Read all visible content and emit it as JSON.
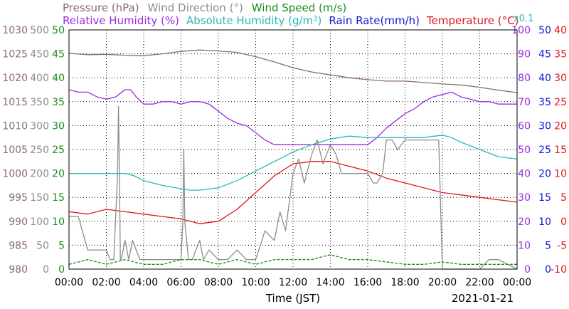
{
  "chart_data": {
    "type": "line",
    "header_row1": [
      {
        "text": "Pressure (hPa)",
        "color": "#8b6b6b"
      },
      {
        "text": "Wind Direction (°)",
        "color": "#8c8c8c"
      },
      {
        "text": "Wind Speed (m/s)",
        "color": "#1a8c1a"
      }
    ],
    "header_row2": [
      {
        "text": "Relative Humidity (%)",
        "color": "#9a2be0"
      },
      {
        "text": "Absolute Humidity (g/m",
        "sup": "3",
        "tail": ")",
        "color": "#2ab8b8"
      },
      {
        "text": "Rain Rate(mm/h)",
        "color": "#1414d2"
      },
      {
        "text": "Temperature (°C)",
        "color": "#e0141e"
      }
    ],
    "multiplier_note": "x0.1",
    "xlabel": "Time (JST)",
    "date": "2021-01-21",
    "x_ticks": [
      "00:00",
      "02:00",
      "04:00",
      "06:00",
      "08:00",
      "10:00",
      "12:00",
      "14:00",
      "16:00",
      "18:00",
      "20:00",
      "22:00",
      "00:00"
    ],
    "xlim": [
      0,
      24
    ],
    "left_axes": [
      {
        "name": "pressure",
        "color": "#8b6b6b",
        "ticks": [
          "980",
          "985",
          "990",
          "995",
          "1000",
          "1005",
          "1010",
          "1015",
          "1020",
          "1025",
          "1030"
        ],
        "ylim": [
          980,
          1030
        ]
      },
      {
        "name": "wind_direction",
        "color": "#8c8c8c",
        "ticks": [
          "0",
          "50",
          "100",
          "150",
          "200",
          "250",
          "300",
          "350",
          "400",
          "450",
          "500"
        ],
        "ylim": [
          0,
          500
        ]
      },
      {
        "name": "wind_speed",
        "color": "#1a8c1a",
        "ticks": [
          "0",
          "5",
          "10",
          "15",
          "20",
          "25",
          "30",
          "35",
          "40",
          "45",
          "50"
        ],
        "ylim": [
          0,
          50
        ]
      }
    ],
    "right_axes": [
      {
        "name": "relative_humidity",
        "color": "#9a2be0",
        "ticks": [
          "0",
          "10",
          "20",
          "30",
          "40",
          "50",
          "60",
          "70",
          "80",
          "90",
          "100"
        ],
        "ylim": [
          0,
          100
        ]
      },
      {
        "name": "rain_rate",
        "color": "#1414d2",
        "ticks": [
          "0",
          "5",
          "10",
          "15",
          "20",
          "25",
          "30",
          "35",
          "40",
          "45",
          "50"
        ],
        "ylim": [
          0,
          50
        ]
      },
      {
        "name": "temperature",
        "color": "#e0141e",
        "ticks": [
          "-10",
          "-5",
          "0",
          "5",
          "10",
          "15",
          "20",
          "25",
          "30",
          "35",
          "40"
        ],
        "ylim": [
          -10,
          40
        ]
      }
    ],
    "grid": true,
    "series": [
      {
        "name": "Pressure (hPa)",
        "color": "#8b6b6b",
        "axis": "pressure",
        "x": [
          0,
          1,
          2,
          3,
          4,
          5,
          6,
          7,
          8,
          9,
          10,
          11,
          12,
          13,
          14,
          15,
          16,
          17,
          18,
          19,
          20,
          21,
          22,
          23,
          24
        ],
        "y": [
          1025.1,
          1024.8,
          1024.9,
          1024.7,
          1024.6,
          1025.0,
          1025.5,
          1025.8,
          1025.6,
          1025.3,
          1024.4,
          1023.3,
          1022.1,
          1021.2,
          1020.6,
          1020.0,
          1019.6,
          1019.3,
          1019.3,
          1019.0,
          1018.7,
          1018.5,
          1018.0,
          1017.4,
          1016.9
        ]
      },
      {
        "name": "Relative Humidity (%)",
        "color": "#9a2be0",
        "axis": "relative_humidity",
        "x": [
          0,
          0.5,
          1,
          1.5,
          2,
          2.5,
          3,
          3.3,
          3.6,
          4,
          4.5,
          5,
          5.5,
          6,
          6.5,
          7,
          7.5,
          8,
          8.5,
          9,
          9.5,
          10,
          10.5,
          11,
          12,
          13,
          14,
          15,
          16,
          16.5,
          17,
          17.5,
          18,
          18.5,
          19,
          19.5,
          20,
          20.5,
          21,
          22,
          22.5,
          23,
          24
        ],
        "y": [
          75,
          74,
          74,
          72,
          71,
          72,
          75,
          75,
          72,
          69,
          69,
          70,
          70,
          69,
          70,
          70,
          69,
          66,
          63,
          61,
          60,
          57,
          54,
          52,
          52,
          52,
          52,
          52,
          52,
          55,
          59,
          62,
          65,
          67,
          70,
          72,
          73,
          74,
          72,
          70,
          70,
          69,
          69
        ]
      },
      {
        "name": "Absolute Humidity (g/m3)",
        "color": "#2ab8b8",
        "axis": "rain_rate",
        "x": [
          0,
          1,
          2,
          3,
          3.5,
          4,
          5,
          6,
          6.5,
          7,
          8,
          9,
          10,
          11,
          12,
          13,
          14,
          15,
          16,
          17,
          18,
          19,
          20,
          20.5,
          21,
          22,
          23,
          24
        ],
        "y": [
          20.0,
          20.0,
          20.0,
          20.0,
          19.5,
          18.5,
          17.5,
          16.8,
          16.5,
          16.5,
          17.0,
          18.5,
          20.5,
          22.5,
          24.5,
          26.0,
          27.2,
          27.8,
          27.5,
          27.5,
          27.5,
          27.5,
          28.0,
          27.5,
          26.5,
          25.0,
          23.5,
          23.0
        ]
      },
      {
        "name": "Temperature (°C)",
        "color": "#e0141e",
        "axis": "temperature",
        "x": [
          0,
          1,
          2,
          3,
          4,
          5,
          6,
          7,
          8,
          9,
          10,
          11,
          12,
          13,
          14,
          15,
          16,
          17,
          18,
          19,
          20,
          21,
          22,
          23,
          24
        ],
        "y": [
          2.0,
          1.5,
          2.5,
          2.0,
          1.5,
          1.0,
          0.5,
          -0.5,
          0.0,
          2.5,
          6.0,
          9.5,
          12.0,
          12.5,
          12.5,
          11.5,
          10.5,
          9.0,
          8.0,
          7.0,
          6.0,
          5.5,
          5.0,
          4.5,
          4.0
        ]
      },
      {
        "name": "Wind Direction (°)",
        "color": "#8c8c8c",
        "axis": "wind_direction",
        "x": [
          0,
          0.5,
          1,
          1.5,
          2,
          2.2,
          2.4,
          2.6,
          2.65,
          2.7,
          2.75,
          2.8,
          3.0,
          3.2,
          3.4,
          3.6,
          3.8,
          4,
          4.5,
          5,
          5.5,
          6,
          6.1,
          6.15,
          6.2,
          6.4,
          6.6,
          6.8,
          7.0,
          7.2,
          7.5,
          8,
          8.5,
          9,
          9.5,
          10,
          10.5,
          11,
          11.3,
          11.6,
          12,
          12.3,
          12.6,
          13,
          13.3,
          13.6,
          14,
          14.3,
          14.6,
          15,
          15.5,
          16,
          16.3,
          16.5,
          16.8,
          17,
          17.3,
          17.6,
          18,
          18.5,
          19,
          19.5,
          19.8,
          20,
          20.5,
          21,
          22,
          22.5,
          23,
          24
        ],
        "y": [
          110,
          110,
          40,
          40,
          40,
          20,
          20,
          200,
          340,
          200,
          20,
          20,
          60,
          20,
          60,
          40,
          20,
          20,
          20,
          20,
          20,
          20,
          100,
          250,
          100,
          20,
          20,
          40,
          60,
          20,
          40,
          20,
          20,
          40,
          20,
          20,
          80,
          60,
          120,
          80,
          200,
          230,
          180,
          240,
          270,
          220,
          260,
          240,
          200,
          200,
          200,
          200,
          180,
          180,
          200,
          270,
          270,
          250,
          270,
          270,
          270,
          270,
          270,
          0,
          0,
          0,
          0,
          20,
          20,
          0
        ]
      },
      {
        "name": "Wind Speed (m/s)",
        "color": "#1a8c1a",
        "axis": "wind_speed",
        "x": [
          0,
          1,
          2,
          3,
          4,
          5,
          6,
          7,
          8,
          9,
          10,
          11,
          12,
          13,
          14,
          15,
          16,
          17,
          18,
          19,
          20,
          21,
          22,
          23,
          24
        ],
        "y": [
          1.0,
          2.0,
          1.0,
          2.0,
          1.0,
          1.0,
          2.0,
          2.0,
          1.0,
          2.0,
          1.0,
          2.0,
          2.0,
          2.0,
          3.0,
          2.0,
          2.0,
          1.5,
          1.0,
          1.0,
          1.5,
          1.0,
          1.0,
          1.0,
          1.0
        ]
      }
    ]
  }
}
